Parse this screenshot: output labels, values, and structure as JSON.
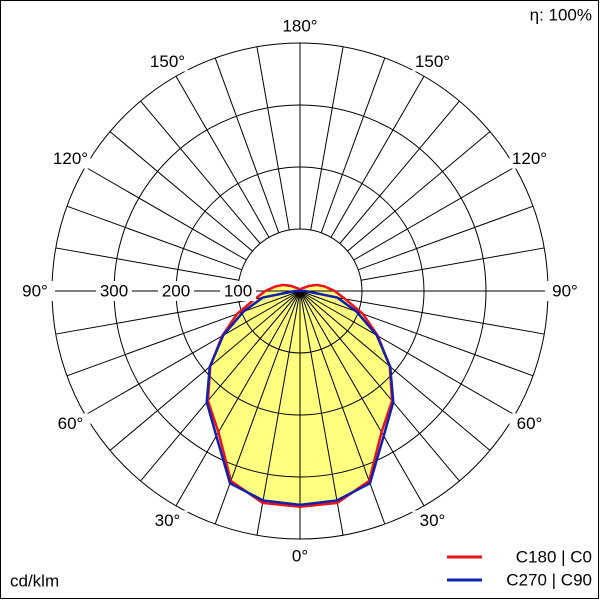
{
  "chart_data": {
    "type": "polar",
    "efficiency": "η: 100%",
    "unit": "cd/klm",
    "angles": [
      0,
      10,
      20,
      30,
      40,
      50,
      60,
      70,
      80,
      90,
      100,
      110,
      120,
      130,
      140,
      150,
      160,
      170,
      180
    ],
    "series": [
      {
        "name": "C180 | C0",
        "color": "#e8141c",
        "values": [
          348,
          347,
          326,
          263,
          231,
          189,
          145,
          108,
          74,
          56,
          41,
          29,
          16,
          8,
          6,
          4,
          2,
          1,
          0
        ]
      },
      {
        "name": "C270 | C90",
        "color": "#1020b0",
        "values": [
          345,
          343,
          330,
          270,
          234,
          190,
          143,
          97,
          61,
          8,
          0,
          0,
          0,
          0,
          0,
          0,
          0,
          0,
          0
        ]
      }
    ],
    "fill_color": "#ffff80",
    "rlim": [
      0,
      400
    ],
    "rticks": [
      100,
      200,
      300
    ],
    "angle_ticks": [
      {
        "value": 0,
        "label": "0°"
      },
      {
        "value": 30,
        "label": "30°"
      },
      {
        "value": 60,
        "label": "60°"
      },
      {
        "value": 90,
        "label": "90°"
      },
      {
        "value": 120,
        "label": "120°"
      },
      {
        "value": 150,
        "label": "150°"
      },
      {
        "value": 180,
        "label": "180°"
      }
    ],
    "legend": "bottom-right"
  }
}
